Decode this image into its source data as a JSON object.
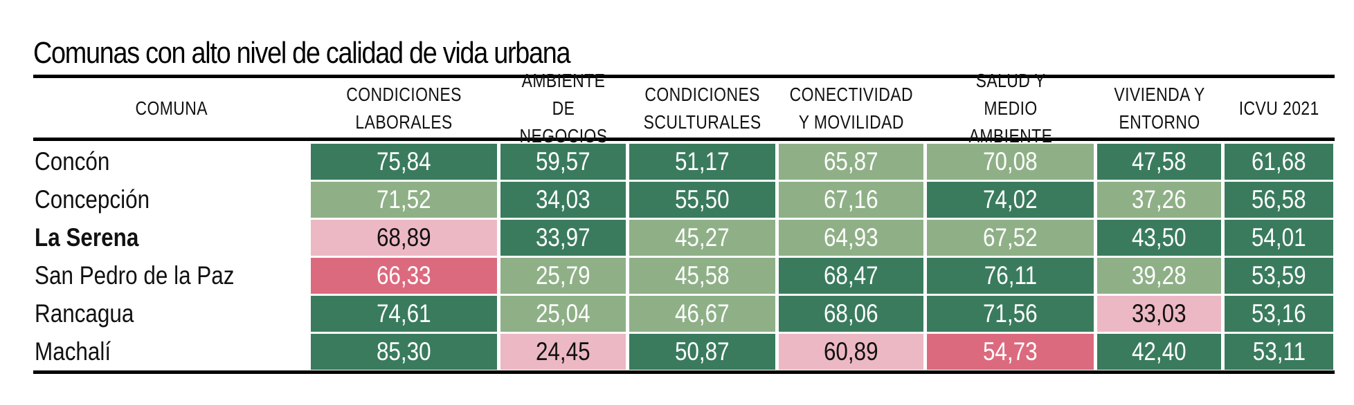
{
  "chart_data": {
    "type": "table",
    "title": "Comunas con alto nivel de calidad de vida urbana",
    "columns": [
      "COMUNA",
      "CONDICIONES\nLABORALES",
      "AMBIENTE DE\nNEGOCIOS",
      "CONDICIONES\nSCULTURALES",
      "CONECTIVIDAD\nY MOVILIDAD",
      "SALUD Y\nMEDIO AMBIENTE",
      "VIVIENDA Y\nENTORNO",
      "ICVU 2021"
    ],
    "rows": [
      {
        "comuna": "Concón",
        "bold": false,
        "values": [
          "75,84",
          "59,57",
          "51,17",
          "65,87",
          "70,08",
          "47,58",
          "61,68"
        ]
      },
      {
        "comuna": "Concepción",
        "bold": false,
        "values": [
          "71,52",
          "34,03",
          "55,50",
          "67,16",
          "74,02",
          "37,26",
          "56,58"
        ]
      },
      {
        "comuna": "La Serena",
        "bold": true,
        "values": [
          "68,89",
          "33,97",
          "45,27",
          "64,93",
          "67,52",
          "43,50",
          "54,01"
        ]
      },
      {
        "comuna": "San Pedro de la Paz",
        "bold": false,
        "values": [
          "66,33",
          "25,79",
          "45,58",
          "68,47",
          "76,11",
          "39,28",
          "53,59"
        ]
      },
      {
        "comuna": "Rancagua",
        "bold": false,
        "values": [
          "74,61",
          "25,04",
          "46,67",
          "68,06",
          "71,56",
          "33,03",
          "53,16"
        ]
      },
      {
        "comuna": "Machalí",
        "bold": false,
        "values": [
          "85,30",
          "24,45",
          "50,87",
          "60,89",
          "54,73",
          "42,40",
          "53,11"
        ]
      }
    ],
    "cell_colors": [
      [
        "dark_green",
        "dark_green",
        "dark_green",
        "light_green",
        "light_green",
        "dark_green",
        "dark_green"
      ],
      [
        "light_green",
        "dark_green",
        "dark_green",
        "light_green",
        "dark_green",
        "light_green",
        "dark_green"
      ],
      [
        "light_pink",
        "dark_green",
        "light_green",
        "light_green",
        "light_green",
        "dark_green",
        "dark_green"
      ],
      [
        "dark_pink",
        "light_green",
        "light_green",
        "dark_green",
        "dark_green",
        "light_green",
        "dark_green"
      ],
      [
        "dark_green",
        "light_green",
        "light_green",
        "dark_green",
        "dark_green",
        "light_pink",
        "dark_green"
      ],
      [
        "dark_green",
        "light_pink",
        "dark_green",
        "light_pink",
        "dark_pink",
        "dark_green",
        "dark_green"
      ]
    ],
    "palette": {
      "dark_green": "#3a7b5e",
      "light_green": "#8fb087",
      "light_pink": "#ecb8c4",
      "dark_pink": "#dc6a7e"
    },
    "text_color_on_light_pink": "#111111",
    "text_color_default": "#ffffff"
  }
}
